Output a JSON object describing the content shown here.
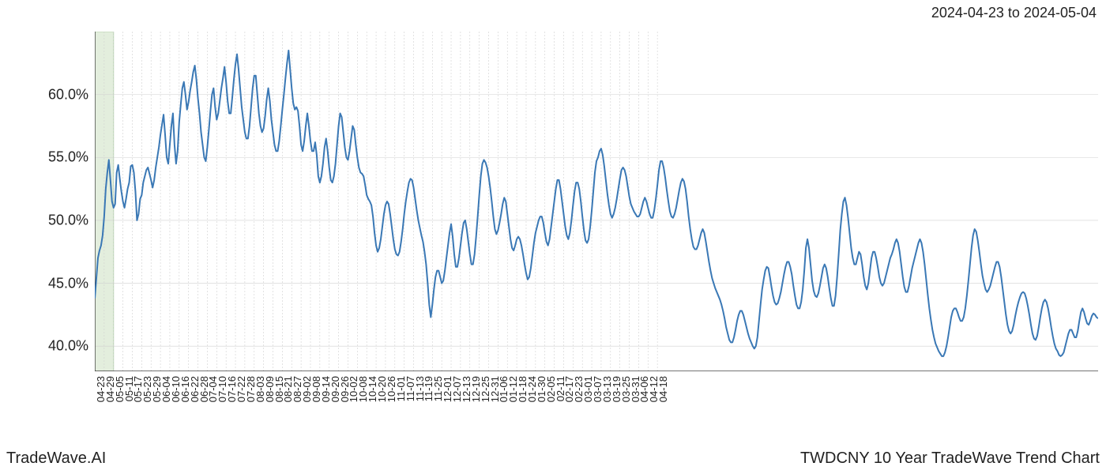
{
  "header": {
    "date_range": "2024-04-23 to 2024-05-04"
  },
  "footer": {
    "left": "TradeWave.AI",
    "right": "TWDCNY 10 Year TradeWave Trend Chart"
  },
  "chart": {
    "type": "line",
    "line_color": "#3a78b5",
    "line_width": 2,
    "background_color": "#ffffff",
    "grid_color": "#d0d0d0",
    "axis_color": "#222222",
    "highlight_band": {
      "start_idx": 0,
      "end_idx": 12,
      "fill_color": "#e3eedd",
      "border_color": "#b8d4b0"
    },
    "ylim": [
      38,
      65
    ],
    "yticks": [
      40,
      45,
      50,
      55,
      60
    ],
    "ytick_labels": [
      "40.0%",
      "45.0%",
      "50.0%",
      "55.0%",
      "60.0%"
    ],
    "xtick_interval": 6,
    "xtick_labels": [
      "04-23",
      "04-29",
      "05-05",
      "05-11",
      "05-17",
      "05-23",
      "05-29",
      "06-04",
      "06-10",
      "06-16",
      "06-22",
      "06-28",
      "07-04",
      "07-10",
      "07-16",
      "07-22",
      "07-28",
      "08-03",
      "08-09",
      "08-15",
      "08-21",
      "08-27",
      "09-02",
      "09-08",
      "09-14",
      "09-20",
      "09-26",
      "10-02",
      "10-08",
      "10-14",
      "10-20",
      "10-26",
      "11-01",
      "11-07",
      "11-13",
      "11-19",
      "11-25",
      "12-01",
      "12-07",
      "12-13",
      "12-19",
      "12-25",
      "12-31",
      "01-06",
      "01-12",
      "01-18",
      "01-24",
      "01-30",
      "02-05",
      "02-11",
      "02-17",
      "02-23",
      "03-01",
      "03-07",
      "03-13",
      "03-19",
      "03-25",
      "03-31",
      "04-06",
      "04-12",
      "04-18"
    ],
    "label_fontsize": 13,
    "ytick_fontsize": 18,
    "values": [
      43.8,
      45.4,
      47.0,
      47.6,
      48.0,
      48.8,
      50.3,
      52.5,
      53.8,
      54.8,
      53.2,
      51.5,
      51.0,
      51.3,
      53.8,
      54.4,
      53.3,
      52.3,
      51.5,
      51.0,
      51.7,
      52.5,
      53.0,
      54.3,
      54.4,
      53.8,
      52.3,
      50.0,
      50.5,
      51.7,
      52.0,
      53.0,
      53.5,
      54.0,
      54.2,
      53.7,
      53.2,
      52.6,
      53.2,
      54.2,
      55.0,
      55.8,
      56.8,
      57.6,
      58.4,
      56.8,
      55.0,
      54.5,
      56.0,
      57.5,
      58.5,
      56.0,
      54.5,
      55.5,
      57.8,
      59.2,
      60.5,
      61.0,
      60.0,
      58.8,
      59.4,
      60.3,
      61.0,
      61.8,
      62.3,
      61.2,
      59.7,
      58.5,
      57.0,
      56.0,
      55.0,
      54.7,
      55.8,
      57.2,
      58.7,
      60.0,
      60.5,
      59.0,
      58.0,
      58.5,
      59.5,
      60.5,
      61.3,
      62.2,
      61.0,
      59.5,
      58.5,
      58.5,
      59.8,
      61.2,
      62.4,
      63.2,
      62.0,
      60.5,
      59.0,
      58.0,
      57.0,
      56.5,
      56.5,
      57.5,
      59.0,
      60.5,
      61.5,
      61.5,
      60.0,
      58.5,
      57.5,
      57.0,
      57.3,
      58.3,
      59.6,
      60.5,
      59.5,
      58.0,
      57.0,
      56.0,
      55.5,
      55.5,
      56.3,
      57.5,
      58.8,
      60.0,
      61.3,
      62.5,
      63.5,
      62.0,
      60.5,
      59.3,
      58.8,
      59.0,
      58.7,
      57.5,
      56.0,
      55.5,
      56.3,
      57.5,
      58.5,
      57.5,
      56.3,
      55.5,
      55.5,
      56.2,
      55.2,
      53.5,
      53.0,
      53.5,
      54.5,
      55.8,
      56.5,
      55.5,
      54.2,
      53.2,
      53.0,
      53.5,
      54.5,
      56.0,
      57.5,
      58.5,
      58.2,
      57.0,
      55.8,
      55.0,
      54.8,
      55.5,
      56.5,
      57.5,
      57.2,
      56.0,
      55.0,
      54.2,
      53.8,
      53.7,
      53.5,
      52.8,
      52.0,
      51.7,
      51.5,
      51.2,
      50.3,
      49.0,
      48.0,
      47.5,
      47.8,
      48.5,
      49.5,
      50.5,
      51.2,
      51.5,
      51.3,
      50.5,
      49.5,
      48.5,
      47.7,
      47.3,
      47.2,
      47.5,
      48.3,
      49.3,
      50.5,
      51.5,
      52.3,
      53.0,
      53.3,
      53.2,
      52.6,
      51.7,
      50.8,
      50.0,
      49.4,
      48.8,
      48.3,
      47.5,
      46.5,
      45.0,
      43.3,
      42.3,
      43.3,
      44.5,
      45.5,
      46.0,
      46.0,
      45.5,
      45.0,
      45.2,
      46.0,
      47.0,
      48.0,
      49.0,
      49.7,
      48.7,
      47.3,
      46.3,
      46.3,
      47.0,
      48.0,
      49.0,
      49.8,
      50.0,
      49.3,
      48.3,
      47.3,
      46.5,
      46.5,
      47.3,
      48.7,
      50.3,
      52.0,
      53.5,
      54.5,
      54.8,
      54.6,
      54.2,
      53.5,
      52.6,
      51.5,
      50.3,
      49.3,
      48.9,
      49.2,
      49.8,
      50.5,
      51.3,
      51.8,
      51.5,
      50.5,
      49.5,
      48.5,
      47.8,
      47.6,
      48.0,
      48.5,
      48.7,
      48.5,
      48.0,
      47.3,
      46.5,
      45.8,
      45.3,
      45.5,
      46.2,
      47.2,
      48.2,
      49.0,
      49.5,
      50.0,
      50.3,
      50.3,
      49.8,
      49.0,
      48.3,
      48.0,
      48.5,
      49.5,
      50.5,
      51.5,
      52.5,
      53.2,
      53.2,
      52.5,
      51.5,
      50.5,
      49.5,
      48.8,
      48.5,
      49.0,
      50.0,
      51.2,
      52.3,
      53.0,
      53.0,
      52.5,
      51.5,
      50.3,
      49.2,
      48.4,
      48.2,
      48.5,
      49.5,
      50.8,
      52.3,
      53.8,
      54.7,
      55.0,
      55.5,
      55.7,
      55.2,
      54.3,
      53.2,
      52.1,
      51.2,
      50.5,
      50.2,
      50.5,
      51.0,
      51.7,
      52.5,
      53.3,
      54.0,
      54.2,
      54.0,
      53.5,
      52.7,
      51.9,
      51.3,
      51.0,
      50.7,
      50.5,
      50.3,
      50.3,
      50.5,
      51.0,
      51.5,
      51.8,
      51.5,
      51.0,
      50.5,
      50.2,
      50.2,
      50.8,
      51.7,
      52.8,
      54.0,
      54.7,
      54.7,
      54.2,
      53.4,
      52.4,
      51.5,
      50.7,
      50.3,
      50.2,
      50.5,
      51.0,
      51.7,
      52.4,
      53.0,
      53.3,
      53.1,
      52.5,
      51.5,
      50.3,
      49.3,
      48.5,
      47.9,
      47.7,
      47.7,
      48.0,
      48.5,
      49.0,
      49.3,
      49.0,
      48.3,
      47.5,
      46.7,
      46.0,
      45.4,
      45.0,
      44.6,
      44.3,
      44.0,
      43.7,
      43.3,
      42.8,
      42.2,
      41.5,
      41.0,
      40.5,
      40.3,
      40.3,
      40.7,
      41.3,
      42.0,
      42.5,
      42.8,
      42.8,
      42.5,
      42.0,
      41.5,
      41.0,
      40.6,
      40.3,
      40.0,
      39.8,
      40.0,
      40.7,
      42.0,
      43.3,
      44.5,
      45.3,
      46.0,
      46.3,
      46.2,
      45.5,
      44.7,
      44.0,
      43.5,
      43.3,
      43.4,
      43.8,
      44.3,
      45.0,
      45.7,
      46.3,
      46.7,
      46.7,
      46.3,
      45.7,
      44.8,
      44.0,
      43.3,
      43.0,
      43.0,
      43.5,
      44.5,
      46.0,
      47.8,
      48.5,
      47.8,
      46.5,
      45.2,
      44.4,
      44.0,
      43.9,
      44.2,
      44.8,
      45.5,
      46.2,
      46.5,
      46.2,
      45.5,
      44.6,
      43.8,
      43.2,
      43.2,
      44.0,
      45.5,
      47.3,
      49.2,
      50.5,
      51.5,
      51.8,
      51.2,
      50.2,
      49.0,
      47.8,
      47.0,
      46.5,
      46.5,
      47.0,
      47.5,
      47.3,
      46.5,
      45.5,
      44.8,
      44.5,
      45.0,
      46.0,
      47.0,
      47.5,
      47.5,
      47.0,
      46.3,
      45.5,
      45.0,
      44.8,
      45.0,
      45.5,
      46.0,
      46.5,
      47.0,
      47.3,
      47.7,
      48.2,
      48.5,
      48.2,
      47.5,
      46.5,
      45.5,
      44.7,
      44.3,
      44.3,
      44.8,
      45.5,
      46.2,
      46.7,
      47.2,
      47.7,
      48.2,
      48.5,
      48.2,
      47.5,
      46.5,
      45.3,
      44.1,
      43.0,
      42.1,
      41.3,
      40.7,
      40.2,
      39.9,
      39.6,
      39.4,
      39.2,
      39.2,
      39.5,
      40.0,
      40.7,
      41.5,
      42.3,
      42.8,
      43.0,
      43.0,
      42.7,
      42.3,
      42.0,
      42.0,
      42.3,
      43.0,
      44.0,
      45.2,
      46.5,
      47.8,
      48.8,
      49.3,
      49.1,
      48.4,
      47.5,
      46.5,
      45.6,
      45.0,
      44.5,
      44.3,
      44.5,
      44.8,
      45.3,
      45.8,
      46.3,
      46.7,
      46.7,
      46.3,
      45.5,
      44.5,
      43.5,
      42.5,
      41.7,
      41.2,
      41.0,
      41.2,
      41.7,
      42.4,
      43.0,
      43.5,
      43.9,
      44.2,
      44.3,
      44.2,
      43.8,
      43.2,
      42.5,
      41.7,
      41.0,
      40.6,
      40.5,
      40.8,
      41.5,
      42.3,
      43.0,
      43.5,
      43.7,
      43.5,
      43.0,
      42.3,
      41.5,
      40.8,
      40.2,
      39.8,
      39.6,
      39.3,
      39.2,
      39.3,
      39.5,
      40.0,
      40.5,
      41.0,
      41.3,
      41.3,
      41.0,
      40.7,
      40.7,
      41.2,
      42.0,
      42.7,
      43.0,
      42.7,
      42.2,
      41.8,
      41.7,
      42.0,
      42.4,
      42.6,
      42.5,
      42.3,
      42.2
    ]
  }
}
